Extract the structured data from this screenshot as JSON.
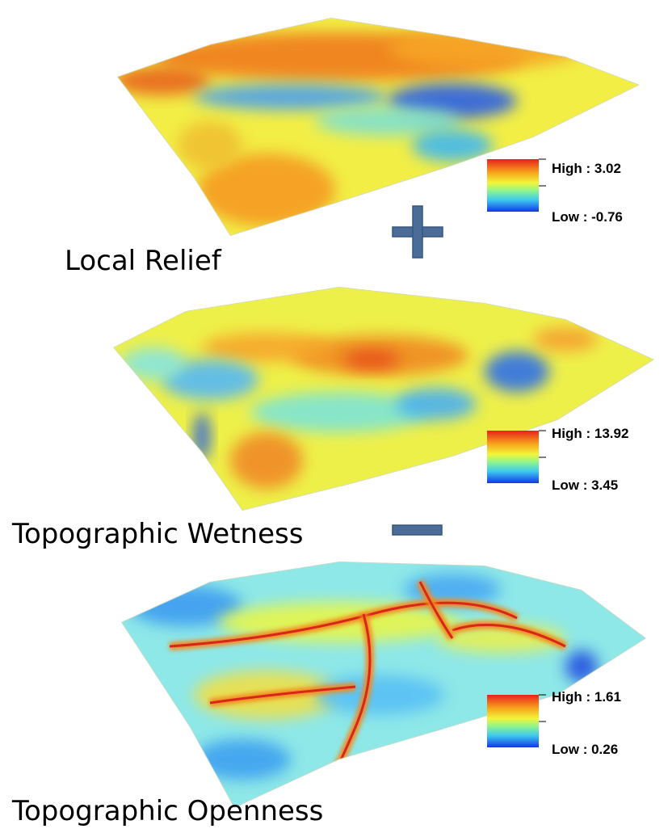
{
  "panels": [
    {
      "label": "Local Relief",
      "legend": {
        "high": "High : 3.02",
        "low": "Low : -0.76"
      }
    },
    {
      "label": "Topographic Wetness",
      "legend": {
        "high": "High : 13.92",
        "low": "Low : 3.45"
      }
    },
    {
      "label": "Topographic Openness",
      "legend": {
        "high": "High : 1.61",
        "low": "Low : 0.26"
      }
    }
  ]
}
